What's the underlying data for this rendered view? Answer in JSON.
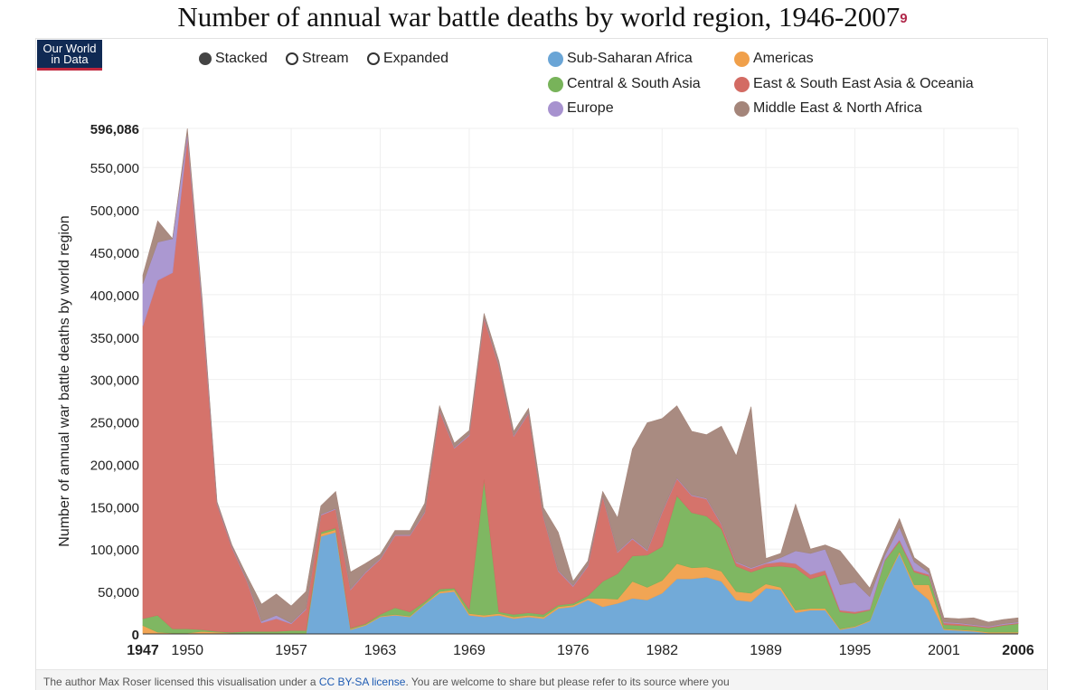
{
  "page": {
    "title": "Number of annual war battle deaths by world region, 1946-2007",
    "title_footnote": "9",
    "logo_line1": "Our World",
    "logo_line2": "in Data"
  },
  "controls": {
    "options": [
      {
        "label": "Stacked",
        "selected": true
      },
      {
        "label": "Stream",
        "selected": false
      },
      {
        "label": "Expanded",
        "selected": false
      }
    ]
  },
  "footer": {
    "text_before": "The author Max Roser licensed this visualisation under a ",
    "link_text": "CC BY-SA license",
    "text_after": ". You are welcome to share but please refer to its source where you"
  },
  "chart_data": {
    "type": "area",
    "stacked": true,
    "ylabel": "Number of annual war battle deaths by world region",
    "xlabel": "",
    "ylim": [
      0,
      596086
    ],
    "y_ticks": [
      0,
      50000,
      100000,
      150000,
      200000,
      250000,
      300000,
      350000,
      400000,
      450000,
      500000,
      550000,
      596086
    ],
    "y_tick_labels": [
      "0",
      "50,000",
      "100,000",
      "150,000",
      "200,000",
      "250,000",
      "300,000",
      "350,000",
      "400,000",
      "450,000",
      "500,000",
      "550,000",
      "596,086"
    ],
    "x_ticks": [
      1947,
      1950,
      1957,
      1963,
      1969,
      1976,
      1982,
      1989,
      1995,
      2001,
      2006
    ],
    "x_range": [
      1947,
      2006
    ],
    "grid": true,
    "legend_position": "top",
    "x": [
      1947,
      1948,
      1949,
      1950,
      1951,
      1952,
      1953,
      1954,
      1955,
      1956,
      1957,
      1958,
      1959,
      1960,
      1961,
      1962,
      1963,
      1964,
      1965,
      1966,
      1967,
      1968,
      1969,
      1970,
      1971,
      1972,
      1973,
      1974,
      1975,
      1976,
      1977,
      1978,
      1979,
      1980,
      1981,
      1982,
      1983,
      1984,
      1985,
      1986,
      1987,
      1988,
      1989,
      1990,
      1991,
      1992,
      1993,
      1994,
      1995,
      1996,
      1997,
      1998,
      1999,
      2000,
      2001,
      2002,
      2003,
      2004,
      2005,
      2006
    ],
    "series": [
      {
        "name": "Sub-Saharan Africa",
        "color": "#6aa5d6",
        "values": [
          0,
          0,
          0,
          0,
          0,
          0,
          0,
          0,
          0,
          0,
          0,
          0,
          115000,
          120000,
          5000,
          10000,
          20000,
          22000,
          20000,
          35000,
          48000,
          50000,
          22000,
          20000,
          22000,
          18000,
          20000,
          18000,
          30000,
          32000,
          40000,
          32000,
          36000,
          42000,
          40000,
          48000,
          65000,
          65000,
          67000,
          62000,
          40000,
          38000,
          54000,
          52000,
          25000,
          28000,
          28000,
          5000,
          8000,
          15000,
          60000,
          95000,
          55000,
          40000,
          5000,
          4000,
          3000,
          1000,
          1000,
          1000
        ]
      },
      {
        "name": "Americas",
        "color": "#f0a04b",
        "values": [
          10000,
          2000,
          1000,
          1000,
          3000,
          2000,
          1000,
          1000,
          1000,
          1000,
          1000,
          1000,
          3000,
          3000,
          1000,
          1000,
          1000,
          1000,
          1000,
          1000,
          2000,
          2000,
          2000,
          2000,
          2000,
          2000,
          2000,
          2000,
          2000,
          2000,
          2000,
          10000,
          5000,
          20000,
          15000,
          15000,
          18000,
          13000,
          12000,
          12000,
          10000,
          10000,
          5000,
          3000,
          3000,
          2000,
          2000,
          1000,
          1000,
          1000,
          1000,
          2000,
          3000,
          18000,
          1000,
          1000,
          1000,
          1000,
          1000,
          1000
        ]
      },
      {
        "name": "Central & South Asia",
        "color": "#78b35a",
        "values": [
          8000,
          20000,
          5000,
          5000,
          2000,
          1000,
          1000,
          2000,
          2000,
          2000,
          3000,
          3000,
          2000,
          2000,
          1000,
          1000,
          2000,
          8000,
          5000,
          2000,
          3000,
          2000,
          5000,
          160000,
          2000,
          3000,
          3000,
          3000,
          2000,
          2000,
          3000,
          20000,
          30000,
          30000,
          38000,
          40000,
          80000,
          65000,
          60000,
          50000,
          30000,
          25000,
          20000,
          25000,
          50000,
          35000,
          40000,
          20000,
          15000,
          12000,
          25000,
          12000,
          15000,
          10000,
          5000,
          5000,
          5000,
          5000,
          8000,
          10000
        ]
      },
      {
        "name": "East & South East Asia & Oceania",
        "color": "#d36b63",
        "values": [
          345000,
          395000,
          420000,
          580000,
          380000,
          150000,
          100000,
          60000,
          10000,
          15000,
          8000,
          25000,
          20000,
          22000,
          45000,
          60000,
          65000,
          85000,
          90000,
          105000,
          210000,
          165000,
          205000,
          190000,
          290000,
          210000,
          235000,
          115000,
          40000,
          20000,
          35000,
          100000,
          25000,
          20000,
          5000,
          40000,
          20000,
          20000,
          20000,
          5000,
          4000,
          4000,
          4000,
          5000,
          5000,
          5000,
          5000,
          2000,
          2000,
          1000,
          1000,
          2000,
          2000,
          2000,
          2000,
          2000,
          1000,
          1000,
          1000,
          1000
        ]
      },
      {
        "name": "Europe",
        "color": "#a792cf",
        "values": [
          50000,
          45000,
          40000,
          5000,
          5000,
          1000,
          1000,
          1000,
          2000,
          4000,
          1000,
          1000,
          1000,
          1000,
          1000,
          1000,
          1000,
          1000,
          1000,
          1000,
          1000,
          1000,
          1000,
          1000,
          1000,
          1000,
          1000,
          1000,
          1000,
          1000,
          1000,
          1000,
          1000,
          1000,
          1000,
          1000,
          1000,
          1000,
          1000,
          1000,
          1000,
          1000,
          1000,
          5000,
          15000,
          25000,
          25000,
          30000,
          35000,
          15000,
          5000,
          15000,
          10000,
          2000,
          1000,
          1000,
          1000,
          1000,
          1000,
          1000
        ]
      },
      {
        "name": "Middle East & North Africa",
        "color": "#a4857a",
        "values": [
          10000,
          25000,
          0,
          5000,
          5000,
          2000,
          2000,
          5000,
          20000,
          25000,
          20000,
          20000,
          10000,
          20000,
          20000,
          10000,
          5000,
          5000,
          5000,
          10000,
          5000,
          5000,
          5000,
          5000,
          5000,
          5000,
          5000,
          10000,
          45000,
          5000,
          5000,
          5000,
          40000,
          105000,
          150000,
          110000,
          85000,
          75000,
          75000,
          115000,
          125000,
          190000,
          5000,
          5000,
          55000,
          5000,
          5000,
          40000,
          15000,
          10000,
          5000,
          10000,
          5000,
          5000,
          5000,
          5000,
          8000,
          5000,
          5000,
          5000
        ]
      }
    ]
  }
}
